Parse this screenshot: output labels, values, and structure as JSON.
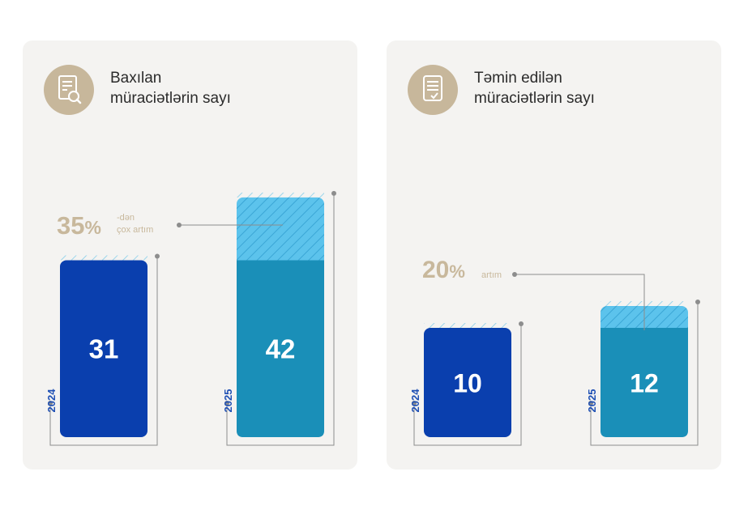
{
  "colors": {
    "card_bg": "#f4f3f1",
    "bar_2024": "#0a3fae",
    "bar_2025": "#1a8fb8",
    "increase_fill": "#5cc3ec",
    "accent_gold": "#c8b89c",
    "year_text": "#1e4fb4",
    "line": "#8d8d8d"
  },
  "chart_data": [
    {
      "type": "bar",
      "title_lines": [
        "Baxılan",
        "müraciətlərin sayı"
      ],
      "icon": "document-search-icon",
      "categories": [
        "2024",
        "2025"
      ],
      "values": [
        31,
        42
      ],
      "ylim": [
        0,
        42
      ],
      "increase": {
        "percent": "35",
        "symbol": "%",
        "note_line1": "-dən",
        "note_line2": "çox artım"
      }
    },
    {
      "type": "bar",
      "title_lines": [
        "Təmin edilən",
        "müraciətlərin sayı"
      ],
      "icon": "document-check-icon",
      "categories": [
        "2024",
        "2025"
      ],
      "values": [
        10,
        12
      ],
      "ylim": [
        0,
        42
      ],
      "increase": {
        "percent": "20",
        "symbol": "%",
        "note_line1": "artım",
        "note_line2": ""
      }
    }
  ]
}
